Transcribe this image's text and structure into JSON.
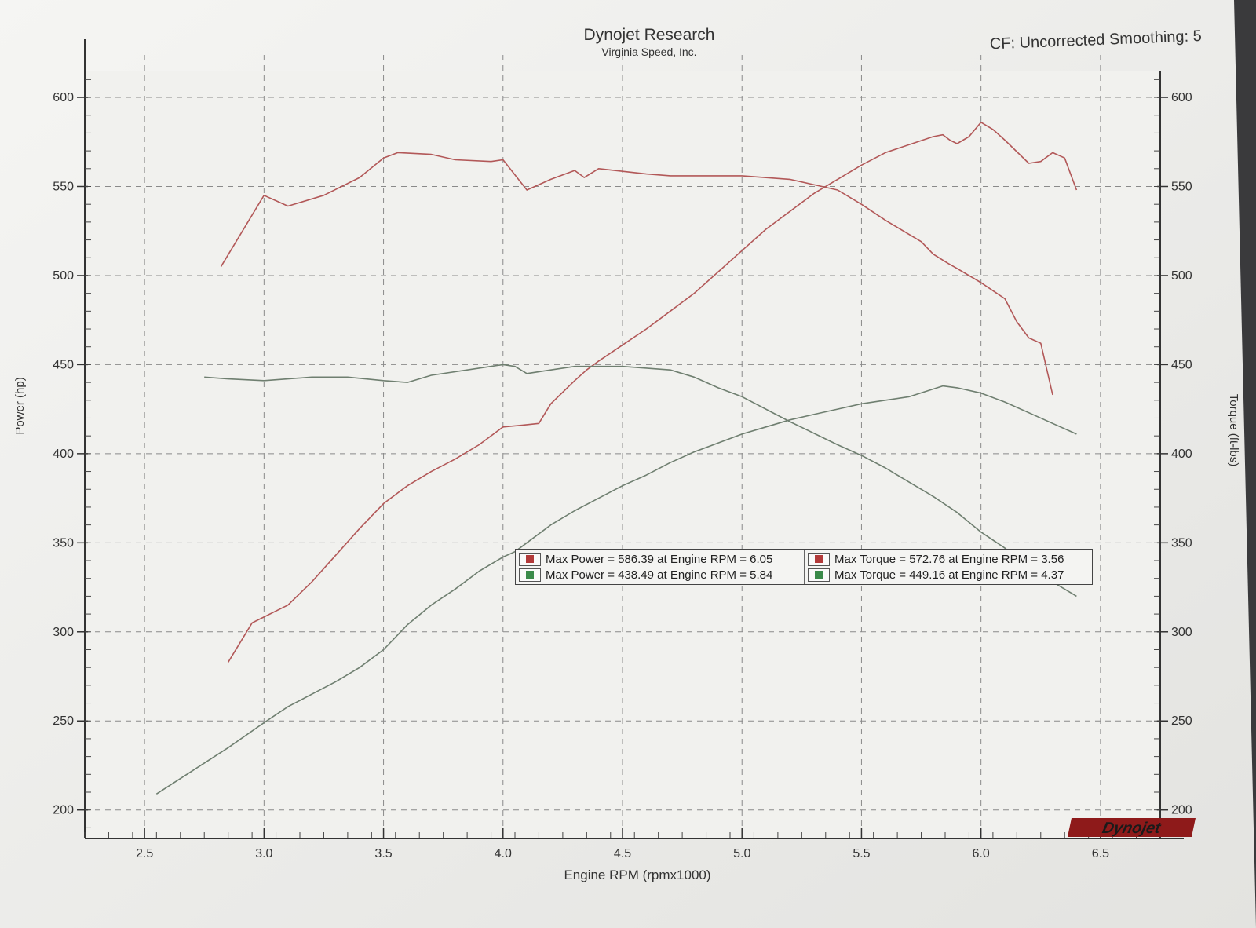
{
  "header": {
    "title": "Dynojet Research",
    "subtitle": "Virginia Speed, Inc.",
    "cf_label": "CF: Uncorrected Smoothing: 5"
  },
  "brand": {
    "logo_text": "Dynojet"
  },
  "colors": {
    "red_run": "#b25858",
    "green_run": "#6f7f70",
    "paper": "#efefec",
    "grid": "#8a8a8a"
  },
  "legend": {
    "rows": [
      {
        "text": "Max Power = 586.39 at Engine RPM = 6.05",
        "color": "#b23a3a"
      },
      {
        "text": "Max Power = 438.49 at Engine RPM = 5.84",
        "color": "#3a8a4a"
      },
      {
        "text": "Max Torque = 572.76 at Engine RPM = 3.56",
        "color": "#b23a3a"
      },
      {
        "text": "Max Torque = 449.16 at Engine RPM = 4.37",
        "color": "#3a8a4a"
      }
    ]
  },
  "chart_data": {
    "type": "line",
    "title": "Dynojet Research",
    "subtitle": "Virginia Speed, Inc.",
    "xlabel": "Engine RPM (rpmx1000)",
    "ylabel": "Power (hp)",
    "y2label": "Torque (ft-lbs)",
    "xlim": [
      2.25,
      6.75
    ],
    "ylim": [
      184,
      615
    ],
    "y2lim": [
      184,
      615
    ],
    "x_ticks": [
      "2.5",
      "3.0",
      "3.5",
      "4.0",
      "4.5",
      "5.0",
      "5.5",
      "6.0",
      "6.5"
    ],
    "x_tick_values": [
      2.5,
      3.0,
      3.5,
      4.0,
      4.5,
      5.0,
      5.5,
      6.0,
      6.5
    ],
    "y_ticks": [
      "200",
      "250",
      "300",
      "350",
      "400",
      "450",
      "500",
      "550",
      "600"
    ],
    "y_tick_values": [
      200,
      250,
      300,
      350,
      400,
      450,
      500,
      550,
      600
    ],
    "y2_ticks": [
      "200",
      "250",
      "300",
      "350",
      "400",
      "450",
      "500",
      "550",
      "600"
    ],
    "y2_tick_values": [
      200,
      250,
      300,
      350,
      400,
      450,
      500,
      550,
      600
    ],
    "grid": true,
    "legend_position": "center",
    "series": [
      {
        "axis": "right",
        "color": "#b25858",
        "x": [
          2.82,
          3.0,
          3.1,
          3.25,
          3.4,
          3.5,
          3.56,
          3.7,
          3.8,
          3.95,
          4.0,
          4.1,
          4.2,
          4.3,
          4.34,
          4.4,
          4.6,
          4.7,
          4.9,
          5.0,
          5.2,
          5.4,
          5.5,
          5.6,
          5.75,
          5.8,
          5.86,
          5.9,
          6.0,
          6.1,
          6.15,
          6.2,
          6.25,
          6.3
        ],
        "y": [
          505,
          545,
          539,
          545,
          555,
          566,
          569,
          568,
          565,
          564,
          565,
          548,
          554,
          559,
          555,
          560,
          557,
          556,
          556,
          556,
          554,
          548,
          540,
          531,
          519,
          512,
          507,
          504,
          496,
          487,
          474,
          465,
          462,
          433
        ]
      },
      {
        "axis": "left",
        "color": "#b25858",
        "x": [
          2.85,
          2.95,
          3.1,
          3.2,
          3.3,
          3.4,
          3.5,
          3.6,
          3.7,
          3.8,
          3.9,
          4.0,
          4.08,
          4.15,
          4.2,
          4.3,
          4.35,
          4.4,
          4.5,
          4.6,
          4.7,
          4.8,
          4.9,
          5.0,
          5.1,
          5.3,
          5.5,
          5.6,
          5.8,
          5.84,
          5.87,
          5.9,
          5.95,
          6.0,
          6.05,
          6.1,
          6.2,
          6.25,
          6.3,
          6.35,
          6.4
        ],
        "y": [
          283,
          305,
          315,
          328,
          343,
          358,
          372,
          382,
          390,
          397,
          405,
          415,
          416,
          417,
          428,
          441,
          447,
          452,
          461,
          470,
          480,
          490,
          502,
          514,
          526,
          546,
          562,
          569,
          578,
          579,
          576,
          574,
          578,
          586,
          582,
          576,
          563,
          564,
          569,
          566,
          548
        ]
      },
      {
        "axis": "right",
        "color": "#6f7f70",
        "x": [
          2.75,
          2.85,
          3.0,
          3.1,
          3.2,
          3.35,
          3.5,
          3.6,
          3.7,
          3.9,
          4.0,
          4.05,
          4.1,
          4.2,
          4.3,
          4.37,
          4.5,
          4.7,
          4.8,
          4.9,
          5.0,
          5.2,
          5.4,
          5.5,
          5.6,
          5.7,
          5.8,
          5.9,
          6.0,
          6.1,
          6.2,
          6.3,
          6.4
        ],
        "y": [
          443,
          442,
          441,
          442,
          443,
          443,
          441,
          440,
          444,
          448,
          450,
          449,
          445,
          447,
          449,
          449,
          449,
          447,
          443,
          437,
          432,
          418,
          405,
          399,
          392,
          384,
          376,
          367,
          356,
          347,
          336,
          328,
          320
        ]
      },
      {
        "axis": "left",
        "color": "#6f7f70",
        "x": [
          2.55,
          2.7,
          2.85,
          3.0,
          3.1,
          3.2,
          3.3,
          3.4,
          3.5,
          3.6,
          3.7,
          3.8,
          3.9,
          4.0,
          4.05,
          4.1,
          4.2,
          4.3,
          4.4,
          4.5,
          4.6,
          4.7,
          4.8,
          4.9,
          5.0,
          5.1,
          5.2,
          5.3,
          5.4,
          5.5,
          5.6,
          5.7,
          5.84,
          5.9,
          6.0,
          6.1,
          6.2,
          6.3,
          6.4
        ],
        "y": [
          209,
          222,
          235,
          249,
          258,
          265,
          272,
          280,
          290,
          304,
          315,
          324,
          334,
          342,
          345,
          350,
          360,
          368,
          375,
          382,
          388,
          395,
          401,
          406,
          411,
          415,
          419,
          422,
          425,
          428,
          430,
          432,
          438,
          437,
          434,
          429,
          423,
          417,
          411
        ]
      }
    ]
  }
}
